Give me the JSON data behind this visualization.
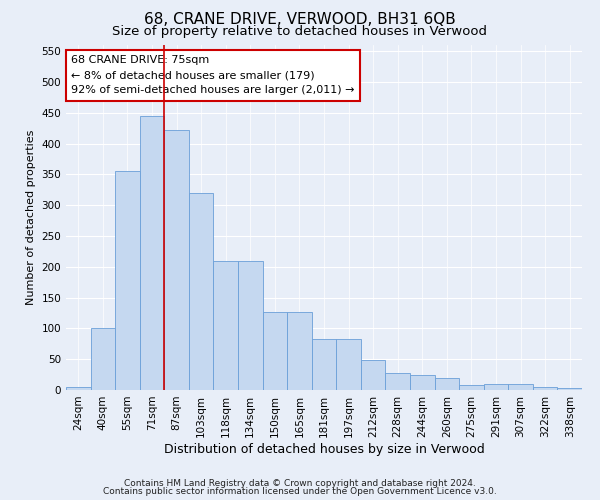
{
  "title": "68, CRANE DRIVE, VERWOOD, BH31 6QB",
  "subtitle": "Size of property relative to detached houses in Verwood",
  "xlabel": "Distribution of detached houses by size in Verwood",
  "ylabel": "Number of detached properties",
  "categories": [
    "24sqm",
    "40sqm",
    "55sqm",
    "71sqm",
    "87sqm",
    "103sqm",
    "118sqm",
    "134sqm",
    "150sqm",
    "165sqm",
    "181sqm",
    "197sqm",
    "212sqm",
    "228sqm",
    "244sqm",
    "260sqm",
    "275sqm",
    "291sqm",
    "307sqm",
    "322sqm",
    "338sqm"
  ],
  "values": [
    5,
    100,
    355,
    445,
    422,
    320,
    210,
    210,
    127,
    127,
    83,
    83,
    48,
    27,
    25,
    20,
    8,
    10,
    10,
    5,
    3
  ],
  "bar_color": "#c5d8f0",
  "bar_edge_color": "#6a9fd8",
  "marker_line_color": "#cc0000",
  "annotation_text": "68 CRANE DRIVE: 75sqm\n← 8% of detached houses are smaller (179)\n92% of semi-detached houses are larger (2,011) →",
  "annotation_box_facecolor": "#ffffff",
  "annotation_box_edgecolor": "#cc0000",
  "ylim": [
    0,
    560
  ],
  "yticks": [
    0,
    50,
    100,
    150,
    200,
    250,
    300,
    350,
    400,
    450,
    500,
    550
  ],
  "background_color": "#e8eef8",
  "plot_bg_color": "#e8eef8",
  "title_fontsize": 11,
  "subtitle_fontsize": 9.5,
  "xlabel_fontsize": 9,
  "ylabel_fontsize": 8,
  "tick_fontsize": 7.5,
  "annotation_fontsize": 8,
  "footer_fontsize": 6.5,
  "footer_line1": "Contains HM Land Registry data © Crown copyright and database right 2024.",
  "footer_line2": "Contains public sector information licensed under the Open Government Licence v3.0."
}
